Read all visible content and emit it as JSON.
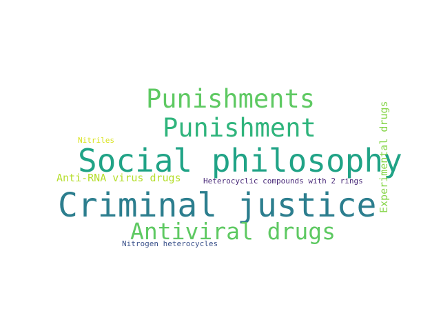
{
  "words": [
    {
      "id": "w-punishments",
      "text": "Punishments",
      "color": "#5ec962"
    },
    {
      "id": "w-punishment",
      "text": "Punishment",
      "color": "#2fb47c"
    },
    {
      "id": "w-social",
      "text": "Social philosophy",
      "color": "#20a386"
    },
    {
      "id": "w-criminal",
      "text": "Criminal justice",
      "color": "#2c7e8e"
    },
    {
      "id": "w-antiviral",
      "text": "Antiviral drugs",
      "color": "#5ec962"
    },
    {
      "id": "w-antirna",
      "text": "Anti-RNA virus drugs",
      "color": "#b5de2b"
    },
    {
      "id": "w-hetero2",
      "text": "Heterocyclic compounds with 2 rings",
      "color": "#482878"
    },
    {
      "id": "w-nitriles",
      "text": "Nitriles",
      "color": "#d8e219"
    },
    {
      "id": "w-nitrogen",
      "text": "Nitrogen heterocycles",
      "color": "#3b528b"
    },
    {
      "id": "w-experimental",
      "text": "Experimental drugs",
      "color": "#86d549"
    }
  ]
}
